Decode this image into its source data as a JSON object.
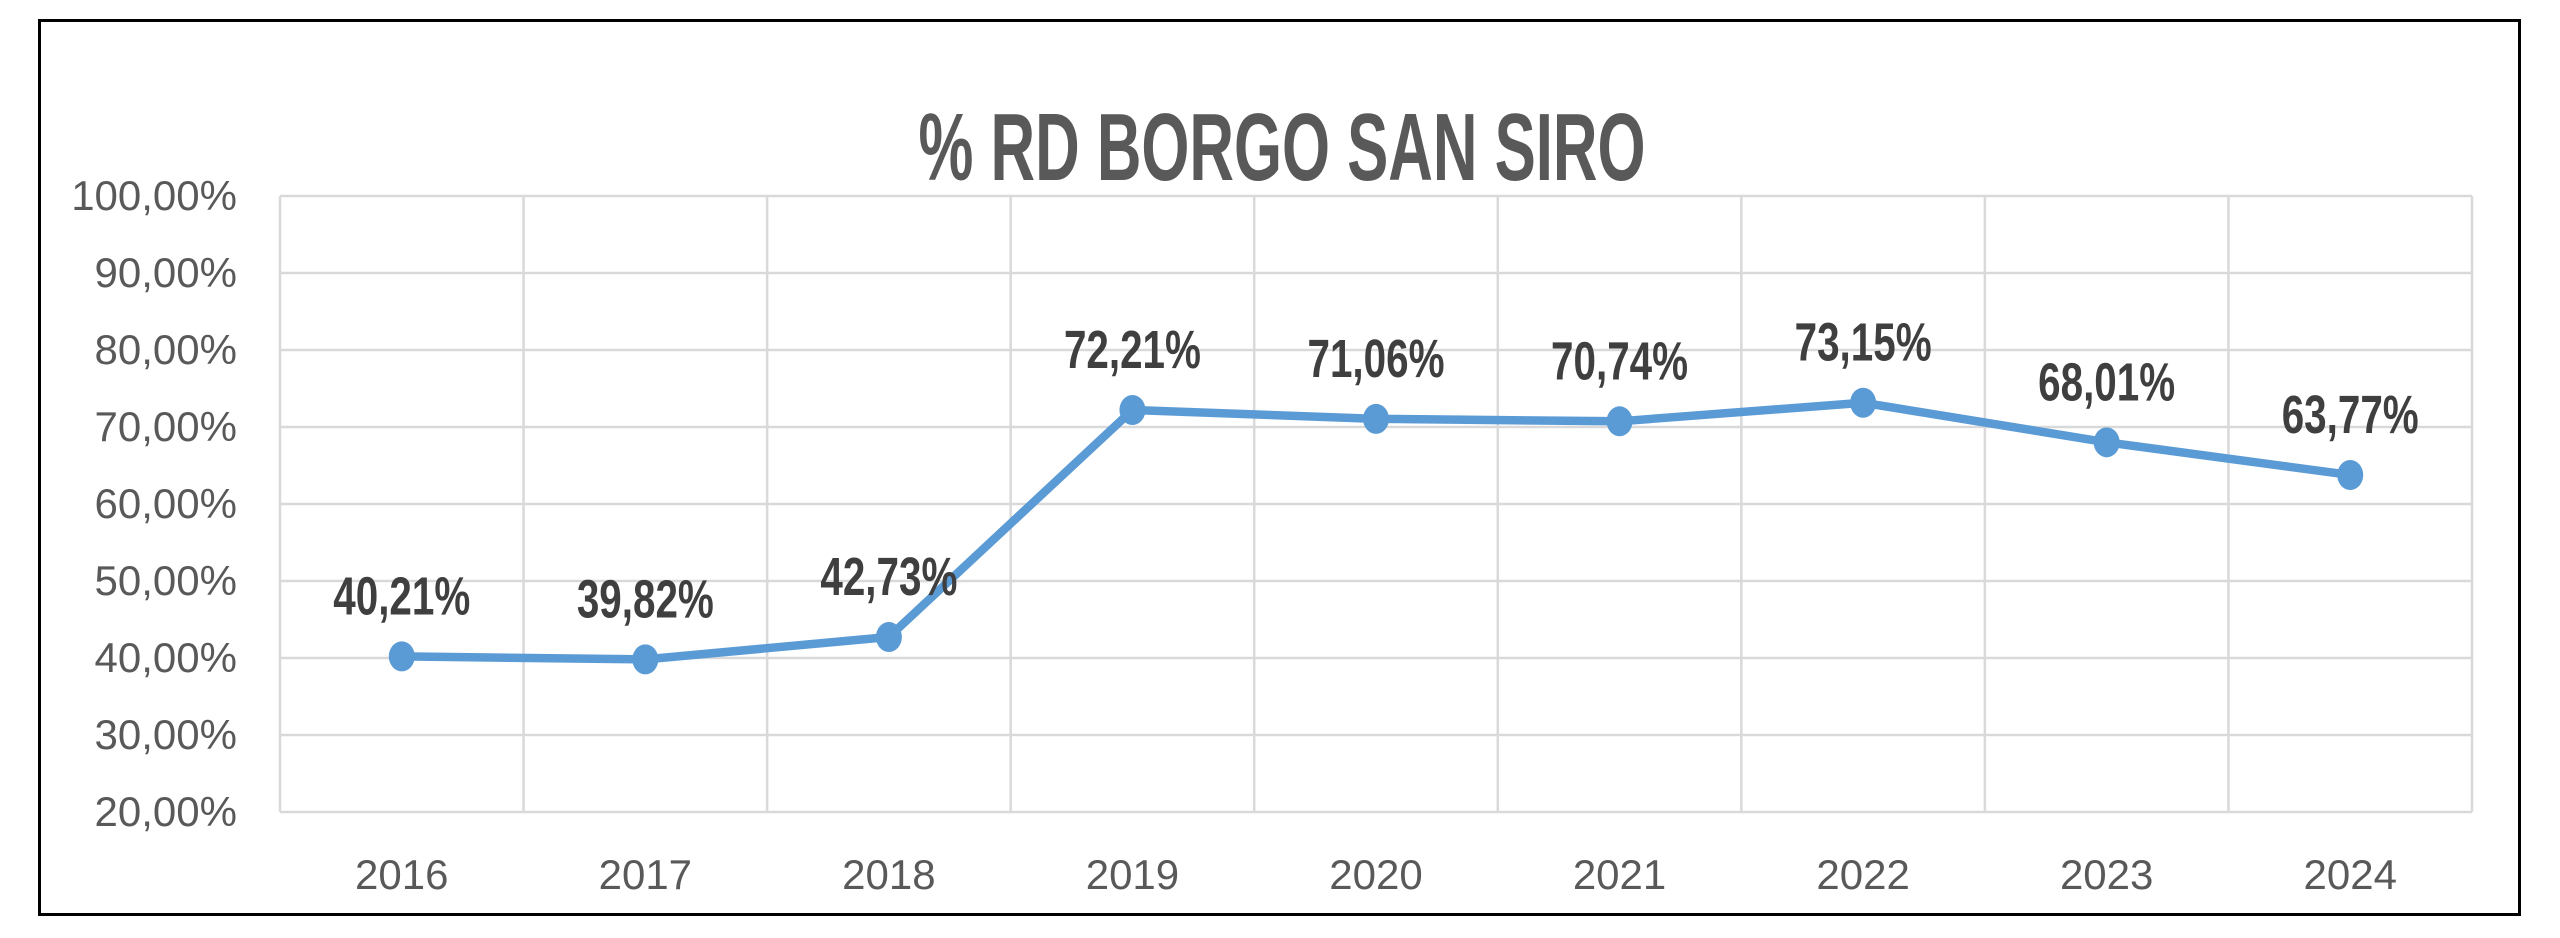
{
  "chart_data": {
    "type": "line",
    "title": "% RD BORGO SAN SIRO",
    "categories": [
      "2016",
      "2017",
      "2018",
      "2019",
      "2020",
      "2021",
      "2022",
      "2023",
      "2024"
    ],
    "values": [
      40.21,
      39.82,
      42.73,
      72.21,
      71.06,
      70.74,
      73.15,
      68.01,
      63.77
    ],
    "data_labels": [
      "40,21%",
      "39,82%",
      "42,73%",
      "72,21%",
      "71,06%",
      "70,74%",
      "73,15%",
      "68,01%",
      "63,77%"
    ],
    "series": [
      {
        "name": "% RD BORGO SAN SIRO",
        "values": [
          40.21,
          39.82,
          42.73,
          72.21,
          71.06,
          70.74,
          73.15,
          68.01,
          63.77
        ]
      }
    ],
    "xlabel": "",
    "ylabel": "",
    "ylim": [
      20,
      100
    ],
    "y_tick_values": [
      100,
      90,
      80,
      70,
      60,
      50,
      40,
      30,
      20
    ],
    "y_tick_labels": [
      "100,00%",
      "90,00%",
      "80,00%",
      "70,00%",
      "60,00%",
      "50,00%",
      "40,00%",
      "30,00%",
      "20,00%"
    ],
    "grid": true,
    "legend": "none",
    "number_format": "0,00%",
    "colors": {
      "line": "#5B9BD5",
      "marker": "#5B9BD5",
      "gridlines": "#D9D9D9",
      "axis_text": "#595959",
      "data_labels": "#3F3F3F",
      "title": "#595959",
      "frame_border": "#000000",
      "background": "#FFFFFF"
    }
  }
}
